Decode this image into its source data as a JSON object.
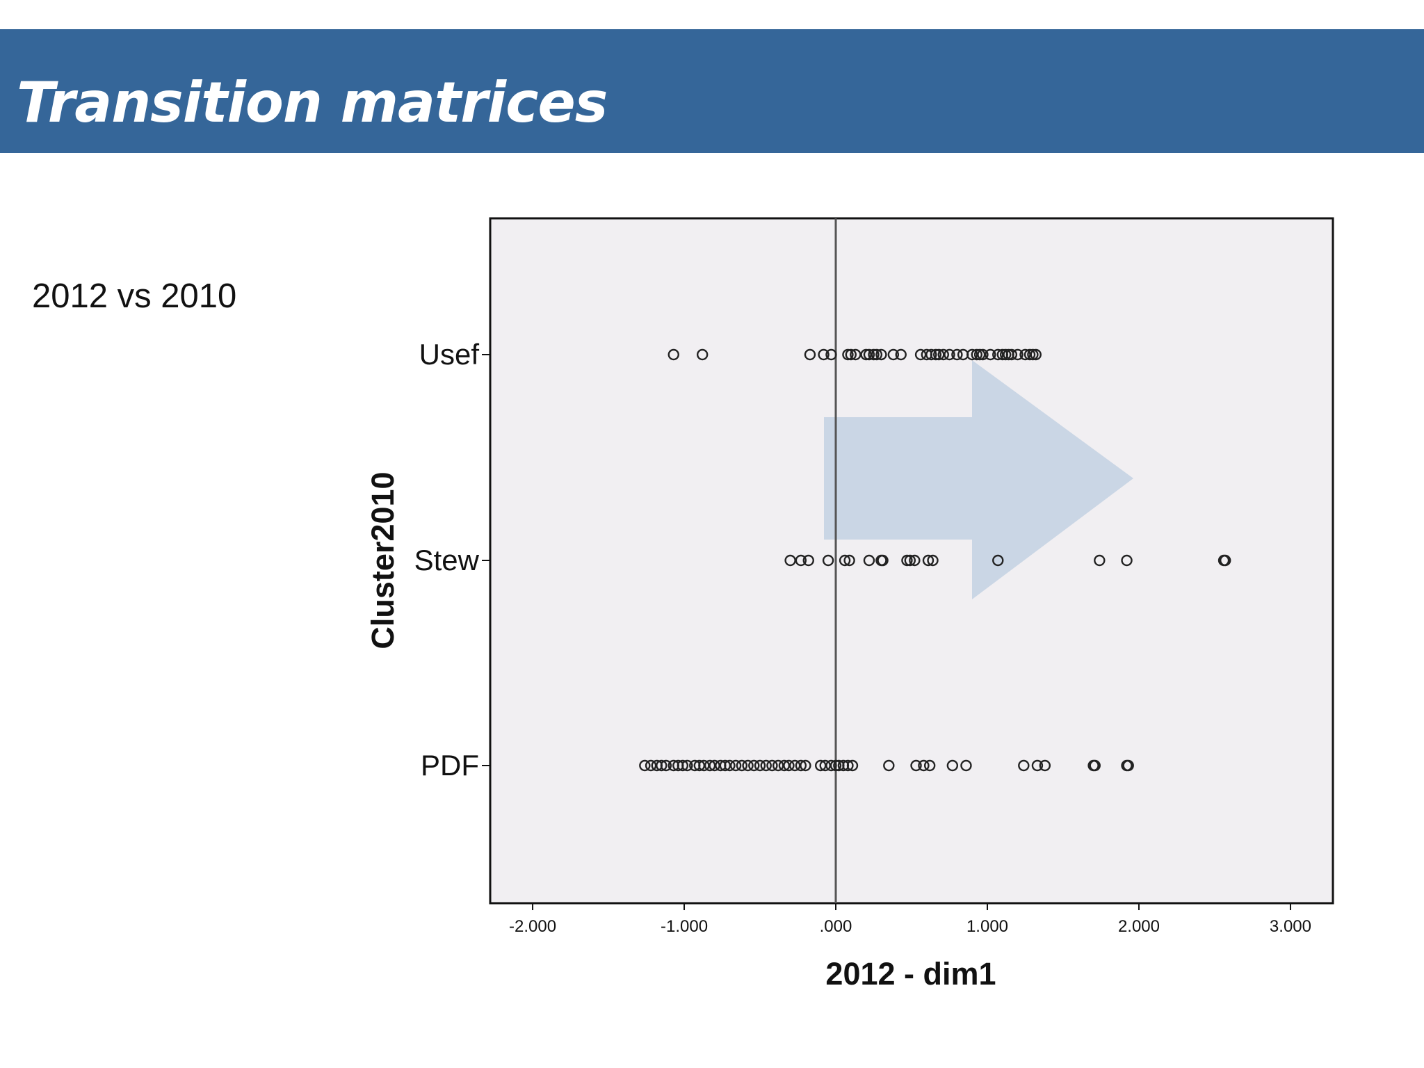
{
  "slide": {
    "title": "Transition matrices",
    "subtitle": "2012 vs 2010"
  },
  "colors": {
    "title_bar": "#356699",
    "plot_background": "#f1eff2",
    "arrow": "#c7d4e4",
    "reference_line": "#555555",
    "marker": "#222222"
  },
  "chart_data": {
    "type": "scatter",
    "xlabel": "2012 - dim1",
    "ylabel": "Cluster2010",
    "categories": [
      "Usef",
      "Stew",
      "PDF"
    ],
    "xlim": [
      -2.28,
      3.28
    ],
    "xticks": [
      -2,
      -1,
      0,
      1,
      2,
      3
    ],
    "xtick_labels": [
      "-2.000",
      "-1.000",
      ".000",
      "1.000",
      "2.000",
      "3.000"
    ],
    "reference_line_x": 0,
    "marker": "open-circle",
    "grid": false,
    "series": [
      {
        "category": "Usef",
        "x": [
          -1.07,
          -0.88,
          -0.17,
          -0.08,
          -0.03,
          0.08,
          0.1,
          0.13,
          0.2,
          0.22,
          0.25,
          0.27,
          0.3,
          0.38,
          0.43,
          0.56,
          0.6,
          0.63,
          0.66,
          0.68,
          0.71,
          0.75,
          0.8,
          0.84,
          0.9,
          0.93,
          0.95,
          0.97,
          1.02,
          1.07,
          1.1,
          1.12,
          1.14,
          1.16,
          1.2,
          1.25,
          1.28,
          1.3,
          1.32
        ]
      },
      {
        "category": "Stew",
        "x": [
          -0.3,
          -0.23,
          -0.18,
          -0.05,
          0.06,
          0.09,
          0.22,
          0.3,
          0.31,
          0.47,
          0.49,
          0.52,
          0.61,
          0.64,
          1.07,
          1.74,
          1.92,
          2.56,
          2.57
        ]
      },
      {
        "category": "PDF",
        "x": [
          -1.26,
          -1.22,
          -1.18,
          -1.15,
          -1.12,
          -1.07,
          -1.04,
          -1.01,
          -0.98,
          -0.93,
          -0.9,
          -0.87,
          -0.83,
          -0.8,
          -0.76,
          -0.73,
          -0.7,
          -0.66,
          -0.62,
          -0.58,
          -0.54,
          -0.5,
          -0.46,
          -0.42,
          -0.38,
          -0.34,
          -0.31,
          -0.27,
          -0.23,
          -0.2,
          -0.1,
          -0.07,
          -0.03,
          0.0,
          0.02,
          0.05,
          0.08,
          0.11,
          0.35,
          0.53,
          0.58,
          0.62,
          0.77,
          0.86,
          1.24,
          1.33,
          1.38,
          1.7,
          1.71,
          1.92,
          1.93
        ]
      }
    ]
  }
}
